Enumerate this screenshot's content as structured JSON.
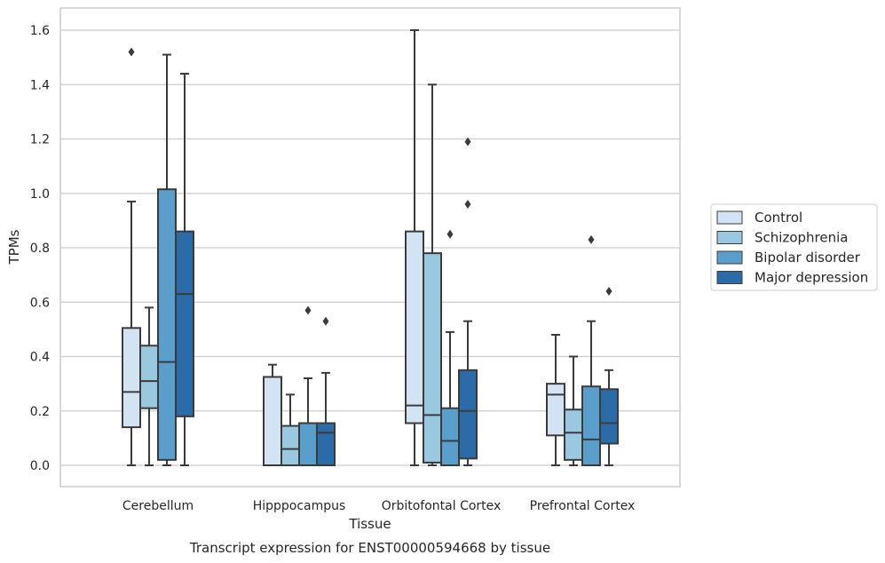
{
  "chart_data": {
    "type": "box",
    "title": "",
    "caption": "Transcript expression for ENST00000594668 by tissue",
    "xlabel": "Tissue",
    "ylabel": "TPMs",
    "ylim": [
      -0.08,
      1.68
    ],
    "yticks": [
      0.0,
      0.2,
      0.4,
      0.6,
      0.8,
      1.0,
      1.2,
      1.4,
      1.6
    ],
    "ytick_labels": [
      "0.0",
      "0.2",
      "0.4",
      "0.6",
      "0.8",
      "1.0",
      "1.2",
      "1.4",
      "1.6"
    ],
    "grid": "horizontal",
    "legend_position": "right",
    "categories": [
      "Cerebellum",
      "Hipppocampus",
      "Orbitofontal Cortex",
      "Prefrontal Cortex"
    ],
    "series": [
      {
        "name": "Control",
        "color": "#d2e3f3",
        "boxes": [
          {
            "whisker_low": 0.0,
            "q1": 0.14,
            "median": 0.27,
            "q3": 0.505,
            "whisker_high": 0.97,
            "outliers": [
              1.52
            ]
          },
          {
            "whisker_low": 0.0,
            "q1": 0.0,
            "median": 0.0,
            "q3": 0.325,
            "whisker_high": 0.37,
            "outliers": []
          },
          {
            "whisker_low": 0.0,
            "q1": 0.155,
            "median": 0.22,
            "q3": 0.86,
            "whisker_high": 1.6,
            "outliers": []
          },
          {
            "whisker_low": 0.0,
            "q1": 0.11,
            "median": 0.26,
            "q3": 0.3,
            "whisker_high": 0.48,
            "outliers": []
          }
        ]
      },
      {
        "name": "Schizophrenia",
        "color": "#9ac8e0",
        "boxes": [
          {
            "whisker_low": 0.0,
            "q1": 0.21,
            "median": 0.31,
            "q3": 0.44,
            "whisker_high": 0.58,
            "outliers": []
          },
          {
            "whisker_low": 0.0,
            "q1": 0.0,
            "median": 0.06,
            "q3": 0.145,
            "whisker_high": 0.26,
            "outliers": []
          },
          {
            "whisker_low": 0.0,
            "q1": 0.01,
            "median": 0.185,
            "q3": 0.78,
            "whisker_high": 1.4,
            "outliers": []
          },
          {
            "whisker_low": 0.0,
            "q1": 0.02,
            "median": 0.12,
            "q3": 0.205,
            "whisker_high": 0.4,
            "outliers": []
          }
        ]
      },
      {
        "name": "Bipolar disorder",
        "color": "#5a9ecc",
        "boxes": [
          {
            "whisker_low": 0.0,
            "q1": 0.02,
            "median": 0.38,
            "q3": 1.015,
            "whisker_high": 1.51,
            "outliers": []
          },
          {
            "whisker_low": 0.0,
            "q1": 0.0,
            "median": 0.0,
            "q3": 0.155,
            "whisker_high": 0.32,
            "outliers": [
              0.57
            ]
          },
          {
            "whisker_low": 0.0,
            "q1": 0.0,
            "median": 0.09,
            "q3": 0.21,
            "whisker_high": 0.49,
            "outliers": [
              0.85
            ]
          },
          {
            "whisker_low": 0.0,
            "q1": 0.0,
            "median": 0.095,
            "q3": 0.29,
            "whisker_high": 0.53,
            "outliers": [
              0.83
            ]
          }
        ]
      },
      {
        "name": "Major depression",
        "color": "#2b6ca8",
        "boxes": [
          {
            "whisker_low": 0.0,
            "q1": 0.18,
            "median": 0.63,
            "q3": 0.86,
            "whisker_high": 1.44,
            "outliers": []
          },
          {
            "whisker_low": 0.0,
            "q1": 0.0,
            "median": 0.12,
            "q3": 0.155,
            "whisker_high": 0.34,
            "outliers": [
              0.53
            ]
          },
          {
            "whisker_low": 0.0,
            "q1": 0.025,
            "median": 0.2,
            "q3": 0.35,
            "whisker_high": 0.53,
            "outliers": [
              0.96,
              1.19
            ]
          },
          {
            "whisker_low": 0.0,
            "q1": 0.08,
            "median": 0.155,
            "q3": 0.28,
            "whisker_high": 0.35,
            "outliers": [
              0.64
            ]
          }
        ]
      }
    ]
  }
}
